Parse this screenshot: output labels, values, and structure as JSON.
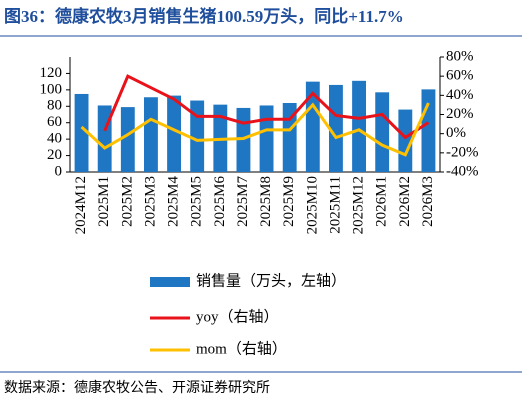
{
  "chart_data": {
    "type": "bar-line",
    "title": "图36：德康农牧3月销售生猪100.59万头，同比+11.7%",
    "source": "数据来源：德康农牧公告、开源证券研究所",
    "categories": [
      "2024M12",
      "2025M1",
      "2025M2",
      "2025M3",
      "2025M4",
      "2025M5",
      "2025M6",
      "2025M7",
      "2025M8",
      "2025M9",
      "2025M10",
      "2025M11",
      "2025M12",
      "2026M1",
      "2026M2",
      "2026M3"
    ],
    "series": [
      {
        "name": "销售量（万头，左轴）",
        "type": "bar",
        "color": "#1f77c4",
        "values": [
          95,
          81,
          79,
          91,
          93,
          87,
          82,
          78,
          81,
          84,
          110,
          106,
          111,
          97,
          76,
          100.59
        ]
      },
      {
        "name": "yoy（右轴）",
        "type": "line",
        "axis": "y2",
        "color": "#e8121a",
        "values": [
          null,
          3,
          60,
          48,
          36,
          18,
          18,
          11,
          15,
          15,
          42,
          19,
          16,
          20,
          -4,
          11.7
        ]
      },
      {
        "name": "mom（右轴）",
        "type": "line",
        "axis": "y2",
        "color": "#ffc000",
        "values": [
          7,
          -15,
          -1,
          15,
          4,
          -7,
          -6,
          -5,
          4,
          4,
          30,
          -4,
          4,
          -12,
          -22,
          32
        ]
      }
    ],
    "ylim": [
      0,
      140
    ],
    "yticks": [
      0,
      20,
      40,
      60,
      80,
      100,
      120
    ],
    "y2lim": [
      -40,
      80
    ],
    "y2ticks": [
      {
        "value": -40,
        "label": "-40%"
      },
      {
        "value": -20,
        "label": "-20%"
      },
      {
        "value": 0,
        "label": "0%"
      },
      {
        "value": 20,
        "label": "20%"
      },
      {
        "value": 40,
        "label": "40%"
      },
      {
        "value": 60,
        "label": "60%"
      },
      {
        "value": 80,
        "label": "80%"
      }
    ]
  }
}
